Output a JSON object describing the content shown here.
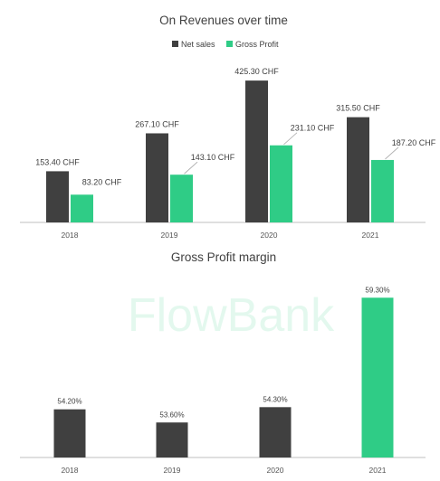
{
  "colors": {
    "net_sales": "#404040",
    "gross_profit": "#2fcc86",
    "axis": "#bfbfbf"
  },
  "watermark": "FlowBank",
  "chart_data": [
    {
      "type": "bar",
      "title": "On Revenues over time",
      "categories": [
        "2018",
        "2019",
        "2020",
        "2021"
      ],
      "series": [
        {
          "name": "Net sales",
          "values": [
            153.4,
            267.1,
            425.3,
            315.5
          ],
          "labels": [
            "153.40 CHF",
            "267.10 CHF",
            "425.30 CHF",
            "315.50 CHF"
          ]
        },
        {
          "name": "Gross Profit",
          "values": [
            83.2,
            143.1,
            231.1,
            187.2
          ],
          "labels": [
            "83.20 CHF",
            "143.10 CHF",
            "231.10 CHF",
            "187.20 CHF"
          ]
        }
      ],
      "ylim": [
        0,
        450
      ],
      "legend": "top",
      "grid": false
    },
    {
      "type": "bar",
      "title": "Gross Profit margin",
      "categories": [
        "2018",
        "2019",
        "2020",
        "2021"
      ],
      "values": [
        54.2,
        53.6,
        54.3,
        59.3
      ],
      "labels": [
        "54.20%",
        "53.60%",
        "54.30%",
        "59.30%"
      ],
      "highlight_index": 3,
      "ylim": [
        52,
        59.6
      ],
      "grid": false
    }
  ]
}
